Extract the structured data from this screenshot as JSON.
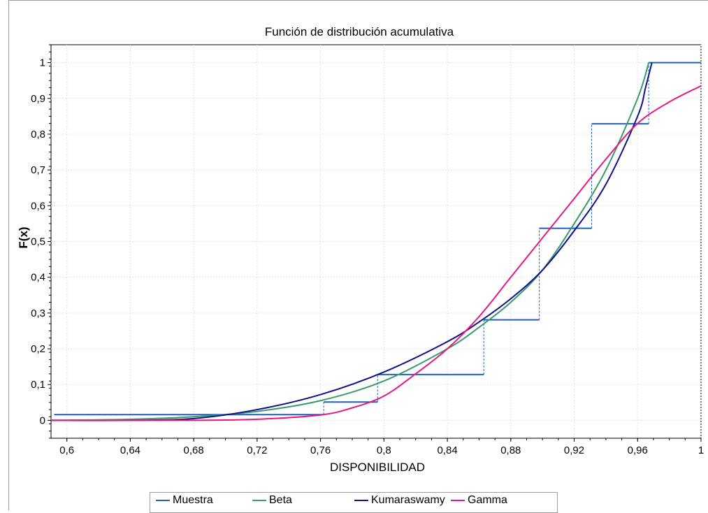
{
  "chart_data": {
    "type": "line",
    "title": "Función de distribución acumulativa",
    "xlabel": "DISPONIBILIDAD",
    "ylabel": "F(x)",
    "xlim": [
      0.59,
      1.0
    ],
    "ylim": [
      -0.05,
      1.05
    ],
    "x_ticks": [
      0.6,
      0.64,
      0.68,
      0.72,
      0.76,
      0.8,
      0.84,
      0.88,
      0.92,
      0.96,
      1
    ],
    "x_tick_labels": [
      "0,6",
      "0,64",
      "0,68",
      "0,72",
      "0,76",
      "0,8",
      "0,84",
      "0,88",
      "0,92",
      "0,96",
      "1"
    ],
    "y_ticks": [
      0,
      0.1,
      0.2,
      0.3,
      0.4,
      0.5,
      0.6,
      0.7,
      0.8,
      0.9,
      1
    ],
    "y_tick_labels": [
      "0",
      "0,1",
      "0,2",
      "0,3",
      "0,4",
      "0,5",
      "0,6",
      "0,7",
      "0,8",
      "0,9",
      "1"
    ],
    "grid": true,
    "legend_position": "bottom",
    "series": [
      {
        "name": "Muestra",
        "kind": "step",
        "color": "#1f5fbf",
        "x": [
          0.592,
          0.762,
          0.796,
          0.863,
          0.898,
          0.931,
          0.967,
          1.0
        ],
        "y": [
          0.016,
          0.051,
          0.128,
          0.281,
          0.537,
          0.829,
          1.0,
          1.0
        ]
      },
      {
        "name": "Beta",
        "kind": "line",
        "color": "#3a9a6c",
        "x": [
          0.59,
          0.64,
          0.68,
          0.72,
          0.76,
          0.8,
          0.84,
          0.86,
          0.88,
          0.9,
          0.92,
          0.94,
          0.96,
          0.967
        ],
        "y": [
          0.0,
          0.003,
          0.01,
          0.025,
          0.055,
          0.11,
          0.2,
          0.26,
          0.33,
          0.42,
          0.55,
          0.7,
          0.9,
          1.0
        ]
      },
      {
        "name": "Kumaraswamy",
        "kind": "line",
        "color": "#10108a",
        "x": [
          0.59,
          0.64,
          0.68,
          0.72,
          0.76,
          0.8,
          0.84,
          0.86,
          0.88,
          0.9,
          0.92,
          0.94,
          0.96,
          0.965,
          0.969
        ],
        "y": [
          0.0,
          0.0,
          0.005,
          0.03,
          0.072,
          0.135,
          0.22,
          0.275,
          0.34,
          0.42,
          0.53,
          0.66,
          0.85,
          0.93,
          1.0
        ]
      },
      {
        "name": "Gamma",
        "kind": "line",
        "color": "#e8187e",
        "x": [
          0.59,
          0.68,
          0.72,
          0.76,
          0.78,
          0.8,
          0.82,
          0.84,
          0.86,
          0.88,
          0.9,
          0.92,
          0.94,
          0.96,
          0.98,
          1.0
        ],
        "y": [
          0.0,
          0.0,
          0.003,
          0.015,
          0.035,
          0.068,
          0.13,
          0.2,
          0.29,
          0.4,
          0.51,
          0.62,
          0.73,
          0.83,
          0.89,
          0.935
        ]
      }
    ]
  }
}
